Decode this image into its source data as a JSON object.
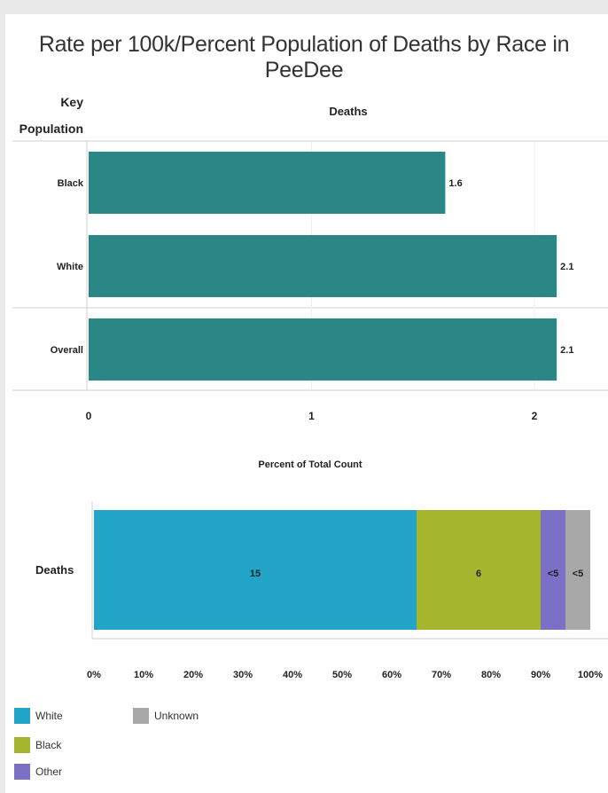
{
  "title": "Rate per 100k/Percent Population of Deaths by Race in PeeDee",
  "colors": {
    "teal": "#2a8786",
    "white": "#22a5c8",
    "black": "#a5b52d",
    "other": "#7b70c6",
    "unknown": "#a8a8a8"
  },
  "chart_data": [
    {
      "type": "bar",
      "orientation": "horizontal",
      "row_header": "Key Population",
      "column_header": "Deaths",
      "categories": [
        "Black",
        "White",
        "Overall"
      ],
      "values": [
        1.6,
        2.1,
        2.1
      ],
      "value_labels": [
        "1.6",
        "2.1",
        "2.1"
      ],
      "xlim": [
        0,
        2.33
      ],
      "x_ticks": [
        "0",
        "1",
        "2"
      ]
    },
    {
      "type": "bar",
      "orientation": "horizontal-stacked",
      "title": "Percent of Total Count",
      "row_label": "Deaths",
      "segments": [
        {
          "name": "White",
          "percent": 65,
          "label": "15"
        },
        {
          "name": "Black",
          "percent": 25,
          "label": "6"
        },
        {
          "name": "Other",
          "percent": 5,
          "label": "<5"
        },
        {
          "name": "Unknown",
          "percent": 5,
          "label": "<5"
        }
      ],
      "x_ticks": [
        "0%",
        "10%",
        "20%",
        "30%",
        "40%",
        "50%",
        "60%",
        "70%",
        "80%",
        "90%",
        "100%"
      ],
      "xlim": [
        0,
        100
      ]
    }
  ],
  "legend": [
    {
      "name": "White",
      "color_key": "white"
    },
    {
      "name": "Black",
      "color_key": "black"
    },
    {
      "name": "Other",
      "color_key": "other"
    },
    {
      "name": "Unknown",
      "color_key": "unknown"
    }
  ]
}
